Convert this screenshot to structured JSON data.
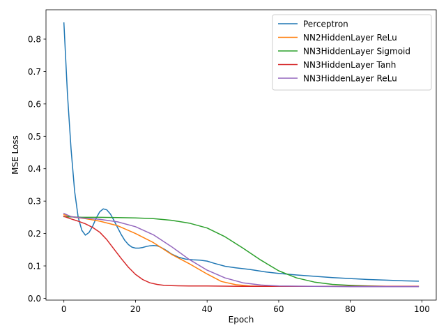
{
  "chart_data": {
    "type": "line",
    "title": "",
    "xlabel": "Epoch",
    "ylabel": "MSE Loss",
    "xlim": [
      -5,
      104
    ],
    "ylim": [
      -0.0055,
      0.8905
    ],
    "xticks": [
      0,
      20,
      40,
      60,
      80,
      100
    ],
    "yticks": [
      0.0,
      0.1,
      0.2,
      0.3,
      0.4,
      0.5,
      0.6,
      0.7,
      0.8
    ],
    "xtick_labels": [
      "0",
      "20",
      "40",
      "60",
      "80",
      "100"
    ],
    "ytick_labels": [
      "0.0",
      "0.1",
      "0.2",
      "0.3",
      "0.4",
      "0.5",
      "0.6",
      "0.7",
      "0.8"
    ],
    "grid": false,
    "legend_position": "top-right",
    "series": [
      {
        "name": "Perceptron",
        "color": "#1f77b4",
        "points": [
          [
            0,
            0.85
          ],
          [
            1,
            0.63
          ],
          [
            2,
            0.46
          ],
          [
            3,
            0.33
          ],
          [
            4,
            0.25
          ],
          [
            5,
            0.21
          ],
          [
            6,
            0.195
          ],
          [
            7,
            0.203
          ],
          [
            8,
            0.222
          ],
          [
            9,
            0.247
          ],
          [
            10,
            0.267
          ],
          [
            11,
            0.276
          ],
          [
            12,
            0.273
          ],
          [
            13,
            0.26
          ],
          [
            14,
            0.24
          ],
          [
            15,
            0.218
          ],
          [
            16,
            0.197
          ],
          [
            17,
            0.179
          ],
          [
            18,
            0.166
          ],
          [
            19,
            0.158
          ],
          [
            20,
            0.155
          ],
          [
            21,
            0.155
          ],
          [
            22,
            0.157
          ],
          [
            23,
            0.16
          ],
          [
            24,
            0.162
          ],
          [
            25,
            0.163
          ],
          [
            26,
            0.162
          ],
          [
            27,
            0.158
          ],
          [
            28,
            0.152
          ],
          [
            29,
            0.145
          ],
          [
            30,
            0.137
          ],
          [
            32,
            0.127
          ],
          [
            34,
            0.121
          ],
          [
            36,
            0.119
          ],
          [
            38,
            0.118
          ],
          [
            40,
            0.115
          ],
          [
            42,
            0.108
          ],
          [
            45,
            0.099
          ],
          [
            48,
            0.094
          ],
          [
            52,
            0.089
          ],
          [
            56,
            0.082
          ],
          [
            60,
            0.077
          ],
          [
            65,
            0.072
          ],
          [
            70,
            0.068
          ],
          [
            75,
            0.064
          ],
          [
            80,
            0.061
          ],
          [
            85,
            0.058
          ],
          [
            90,
            0.056
          ],
          [
            95,
            0.054
          ],
          [
            99,
            0.053
          ]
        ]
      },
      {
        "name": "NN2HiddenLayer ReLu",
        "color": "#ff7f0e",
        "points": [
          [
            0,
            0.258
          ],
          [
            3,
            0.25
          ],
          [
            6,
            0.246
          ],
          [
            10,
            0.238
          ],
          [
            15,
            0.224
          ],
          [
            20,
            0.2
          ],
          [
            25,
            0.172
          ],
          [
            30,
            0.136
          ],
          [
            35,
            0.107
          ],
          [
            40,
            0.075
          ],
          [
            44,
            0.052
          ],
          [
            48,
            0.042
          ],
          [
            52,
            0.038
          ],
          [
            56,
            0.037
          ],
          [
            60,
            0.037
          ],
          [
            70,
            0.037
          ],
          [
            80,
            0.037
          ],
          [
            90,
            0.037
          ],
          [
            99,
            0.037
          ]
        ]
      },
      {
        "name": "NN3HiddenLayer Sigmoid",
        "color": "#2ca02c",
        "points": [
          [
            0,
            0.252
          ],
          [
            5,
            0.25
          ],
          [
            10,
            0.25
          ],
          [
            15,
            0.249
          ],
          [
            20,
            0.248
          ],
          [
            25,
            0.246
          ],
          [
            30,
            0.241
          ],
          [
            35,
            0.232
          ],
          [
            40,
            0.217
          ],
          [
            45,
            0.19
          ],
          [
            50,
            0.155
          ],
          [
            55,
            0.118
          ],
          [
            60,
            0.085
          ],
          [
            65,
            0.063
          ],
          [
            70,
            0.05
          ],
          [
            75,
            0.043
          ],
          [
            80,
            0.04
          ],
          [
            85,
            0.038
          ],
          [
            90,
            0.037
          ],
          [
            95,
            0.037
          ],
          [
            99,
            0.037
          ]
        ]
      },
      {
        "name": "NN3HiddenLayer Tanh",
        "color": "#d62728",
        "points": [
          [
            0,
            0.253
          ],
          [
            2,
            0.245
          ],
          [
            4,
            0.238
          ],
          [
            6,
            0.23
          ],
          [
            8,
            0.219
          ],
          [
            10,
            0.204
          ],
          [
            12,
            0.181
          ],
          [
            14,
            0.152
          ],
          [
            16,
            0.123
          ],
          [
            18,
            0.096
          ],
          [
            20,
            0.074
          ],
          [
            22,
            0.058
          ],
          [
            24,
            0.048
          ],
          [
            26,
            0.043
          ],
          [
            28,
            0.04
          ],
          [
            30,
            0.039
          ],
          [
            35,
            0.038
          ],
          [
            40,
            0.038
          ],
          [
            50,
            0.037
          ],
          [
            60,
            0.037
          ],
          [
            70,
            0.037
          ],
          [
            80,
            0.037
          ],
          [
            90,
            0.037
          ],
          [
            99,
            0.037
          ]
        ]
      },
      {
        "name": "NN3HiddenLayer ReLu",
        "color": "#9467bd",
        "points": [
          [
            0,
            0.262
          ],
          [
            2,
            0.252
          ],
          [
            5,
            0.248
          ],
          [
            10,
            0.244
          ],
          [
            15,
            0.236
          ],
          [
            20,
            0.221
          ],
          [
            25,
            0.196
          ],
          [
            30,
            0.16
          ],
          [
            35,
            0.12
          ],
          [
            40,
            0.087
          ],
          [
            45,
            0.063
          ],
          [
            50,
            0.048
          ],
          [
            55,
            0.041
          ],
          [
            60,
            0.038
          ],
          [
            70,
            0.037
          ],
          [
            80,
            0.036
          ],
          [
            90,
            0.036
          ],
          [
            99,
            0.036
          ]
        ]
      }
    ]
  }
}
